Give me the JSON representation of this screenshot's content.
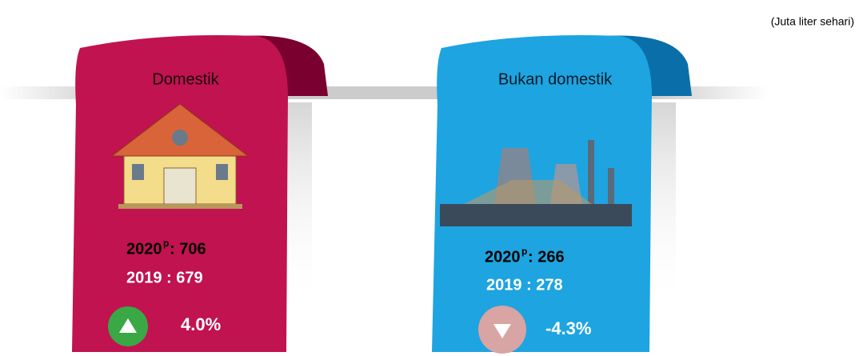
{
  "note": "(Juta liter sehari)",
  "cards": [
    {
      "title": "Domestik",
      "current_year": "2020",
      "current_flag": "p",
      "current_value": ": 706",
      "previous": "2019 : 679",
      "change": "4.0%"
    },
    {
      "title": "Bukan domestik",
      "current_year": "2020",
      "current_flag": "p",
      "current_value": ": 266",
      "previous": "2019 :  278",
      "change": "-4.3%"
    }
  ]
}
